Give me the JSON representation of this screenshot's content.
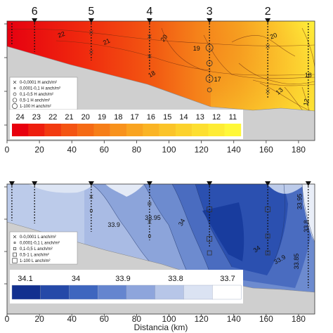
{
  "chart_data": [
    {
      "type": "heatmap",
      "variable": "temperature",
      "x_range": [
        0,
        190
      ],
      "x_ticks": [
        0,
        20,
        40,
        60,
        80,
        100,
        120,
        140,
        160,
        180
      ],
      "x_tick_labels": [
        "0",
        "20",
        "40",
        "60",
        "80",
        "100",
        "120",
        "140",
        "160",
        "180"
      ],
      "stations": [
        {
          "label": "6",
          "x": 17
        },
        {
          "label": "5",
          "x": 52
        },
        {
          "label": "4",
          "x": 88
        },
        {
          "label": "3",
          "x": 125
        },
        {
          "label": "2",
          "x": 161
        }
      ],
      "contour_labels": [
        {
          "text": "22",
          "x": 34
        },
        {
          "text": "21",
          "x": 62
        },
        {
          "text": "20",
          "x": 98
        },
        {
          "text": "19",
          "x": 117
        },
        {
          "text": "18",
          "x": 90
        },
        {
          "text": "17",
          "x": 130
        },
        {
          "text": "20",
          "x": 165
        },
        {
          "text": "18",
          "x": 186
        },
        {
          "text": "13",
          "x": 169
        },
        {
          "text": "12",
          "x": 186
        }
      ],
      "legend": [
        "0-0,0001 H anch/m²",
        "0,0001-0,1 H anch/m²",
        "0,1-0,5 H anch/m²",
        "0,5-1 H anch/m²",
        "1-100 H anch/m²"
      ],
      "colorbar": {
        "labels": [
          "24",
          "23",
          "22",
          "21",
          "20",
          "19",
          "18",
          "17",
          "16",
          "15",
          "14",
          "13",
          "12",
          "11"
        ],
        "colors": [
          "#e8000e",
          "#ee1e0e",
          "#f23a10",
          "#f45412",
          "#f56a14",
          "#f67e18",
          "#f8921c",
          "#f9a420",
          "#fab424",
          "#fbc428",
          "#fcd22c",
          "#fddf30",
          "#feec34",
          "#fff838"
        ]
      }
    },
    {
      "type": "heatmap",
      "variable": "salinity",
      "x_range": [
        0,
        190
      ],
      "x_ticks": [
        0,
        20,
        40,
        60,
        80,
        100,
        120,
        140,
        160,
        180
      ],
      "x_tick_labels": [
        "0",
        "20",
        "40",
        "60",
        "80",
        "100",
        "120",
        "140",
        "160",
        "180"
      ],
      "xlabel": "Distancia (km)",
      "contour_labels": [
        {
          "text": "33.9",
          "x": 66
        },
        {
          "text": "33.95",
          "x": 90
        },
        {
          "text": "34",
          "x": 109
        },
        {
          "text": "34",
          "x": 155
        },
        {
          "text": "33.9",
          "x": 169
        },
        {
          "text": "33.95",
          "x": 182
        },
        {
          "text": "33.8",
          "x": 186
        },
        {
          "text": "33.85",
          "x": 180
        }
      ],
      "legend": [
        "0-0,0001 L anch/m²",
        "0,0001-0,1 L anch/m²",
        "0,1-0,5 L anch/m²",
        "0,5-1 L anch/m²",
        "1-100 L anch/m²"
      ],
      "colorbar": {
        "labels": [
          "34.1",
          "34",
          "33.9",
          "33.8",
          "33.7"
        ],
        "colors": [
          "#12308f",
          "#2549a8",
          "#3e66bf",
          "#6585cf",
          "#8ea5dc",
          "#b7c6e8",
          "#dbe3f3",
          "#ffffff"
        ]
      }
    }
  ]
}
